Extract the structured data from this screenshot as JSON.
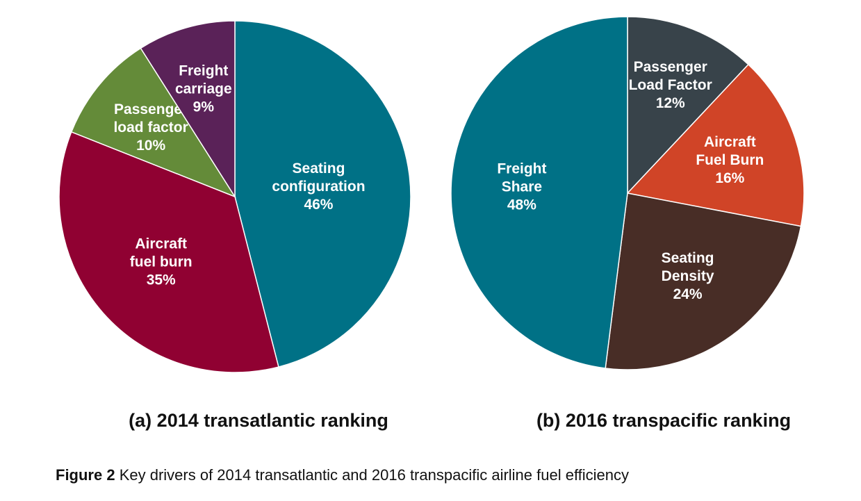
{
  "chart_data": [
    {
      "type": "pie",
      "title": "(a) 2014 transatlantic ranking",
      "slices": [
        {
          "label": [
            "Seating",
            "configuration"
          ],
          "pct_label": "46%",
          "value": 46,
          "color": "#007186"
        },
        {
          "label": [
            "Aircraft",
            "fuel burn"
          ],
          "pct_label": "35%",
          "value": 35,
          "color": "#900132"
        },
        {
          "label": [
            "Passenger",
            "load factor"
          ],
          "pct_label": "10%",
          "value": 10,
          "color": "#648b39"
        },
        {
          "label": [
            "Freight",
            "carriage"
          ],
          "pct_label": "9%",
          "value": 9,
          "color": "#5a2258"
        }
      ]
    },
    {
      "type": "pie",
      "title": "(b) 2016 transpacific ranking",
      "slices": [
        {
          "label": [
            "Passenger",
            "Load Factor"
          ],
          "pct_label": "12%",
          "value": 12,
          "color": "#38434a"
        },
        {
          "label": [
            "Aircraft",
            "Fuel Burn"
          ],
          "pct_label": "16%",
          "value": 16,
          "color": "#d04427"
        },
        {
          "label": [
            "Seating",
            "Density"
          ],
          "pct_label": "24%",
          "value": 24,
          "color": "#482d26"
        },
        {
          "label": [
            "Freight",
            "Share"
          ],
          "pct_label": "48%",
          "value": 48,
          "color": "#007186"
        }
      ]
    }
  ],
  "caption": {
    "label": "Figure 2",
    "text": " Key drivers of 2014 transatlantic and 2016 transpacific airline fuel efficiency"
  }
}
